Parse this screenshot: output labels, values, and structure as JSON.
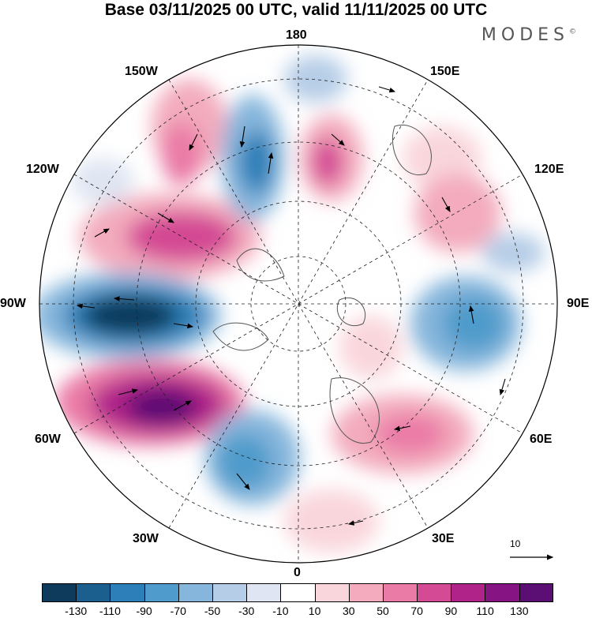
{
  "header": {
    "title": "Base 03/11/2025 00 UTC, valid 11/11/2025 00 UTC",
    "brand": "MODES",
    "brand_mark": "©"
  },
  "map": {
    "projection": "north polar stereographic",
    "longitude_labels": {
      "top": "180",
      "top_right": "150E",
      "upper_right": "120E",
      "right": "90E",
      "lower_right": "60E",
      "bottom_right": "30E",
      "bottom": "0",
      "bottom_left": "30W",
      "lower_left": "60W",
      "left": "90W",
      "upper_left": "120W",
      "top_left": "150W"
    },
    "reference_vector_label": "10",
    "colors": {
      "ocean_background": "#ffffff",
      "coastline": "#555555",
      "grid": "#222222"
    }
  },
  "colorbar": {
    "levels": [
      "-130",
      "-110",
      "-90",
      "-70",
      "-50",
      "-30",
      "-10",
      "10",
      "30",
      "50",
      "70",
      "90",
      "110",
      "130"
    ],
    "colors": [
      "#0e3a5c",
      "#1a5f8e",
      "#2c7fb8",
      "#4f9bcb",
      "#86b6dc",
      "#b6cde7",
      "#dfe5f2",
      "#ffffff",
      "#f9d6dc",
      "#f3abbd",
      "#ea7aa6",
      "#d44a94",
      "#b0248a",
      "#861483",
      "#5b0e73"
    ]
  }
}
